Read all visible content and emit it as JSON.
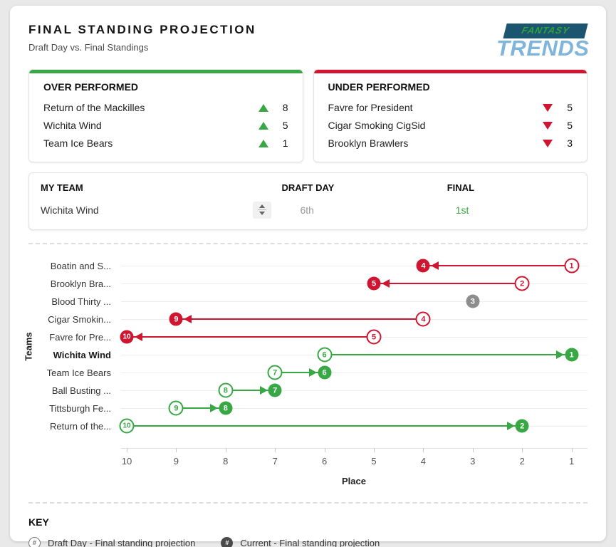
{
  "page": {
    "title": "FINAL STANDING PROJECTION",
    "subtitle": "Draft Day vs. Final Standings"
  },
  "logo": {
    "top": "FANTASY",
    "bottom": "TRENDS",
    "banner_color": "#1c5570",
    "top_color": "#2ca53c",
    "bottom_color": "#7fb5da"
  },
  "over_performed": {
    "title": "OVER PERFORMED",
    "accent_color": "#38a844",
    "rows": [
      {
        "team": "Return of the Mackilles",
        "delta": "8"
      },
      {
        "team": "Wichita Wind",
        "delta": "5"
      },
      {
        "team": "Team Ice Bears",
        "delta": "1"
      }
    ]
  },
  "under_performed": {
    "title": "UNDER PERFORMED",
    "accent_color": "#d01530",
    "rows": [
      {
        "team": "Favre for President",
        "delta": "5"
      },
      {
        "team": "Cigar Smoking CigSid",
        "delta": "5"
      },
      {
        "team": "Brooklyn Brawlers",
        "delta": "3"
      }
    ]
  },
  "my_team": {
    "headers": {
      "team": "MY TEAM",
      "draft": "DRAFT DAY",
      "final": "FINAL"
    },
    "team": "Wichita Wind",
    "draft_day": "6th",
    "final": "1st",
    "final_color": "#38a844"
  },
  "chart_data": {
    "type": "dumbbell",
    "title": "Final standing projection: draft day vs current, per team",
    "xlabel": "Place",
    "ylabel": "Teams",
    "x_ticks": [
      10,
      9,
      8,
      7,
      6,
      5,
      4,
      3,
      2,
      1
    ],
    "x_reversed": true,
    "rows": [
      {
        "team": "Boatin and S...",
        "draft": 1,
        "current": 4,
        "color": "red",
        "bold": false
      },
      {
        "team": "Brooklyn Bra...",
        "draft": 2,
        "current": 5,
        "color": "red",
        "bold": false
      },
      {
        "team": "Blood Thirty ...",
        "draft": 3,
        "current": 3,
        "color": "gray",
        "bold": false
      },
      {
        "team": "Cigar Smokin...",
        "draft": 4,
        "current": 9,
        "color": "red",
        "bold": false
      },
      {
        "team": "Favre for Pre...",
        "draft": 5,
        "current": 10,
        "color": "red",
        "bold": false
      },
      {
        "team": "Wichita Wind",
        "draft": 6,
        "current": 1,
        "color": "green",
        "bold": true
      },
      {
        "team": "Team Ice Bears",
        "draft": 7,
        "current": 6,
        "color": "green",
        "bold": false
      },
      {
        "team": "Ball Busting ...",
        "draft": 8,
        "current": 7,
        "color": "green",
        "bold": false
      },
      {
        "team": "Tittsburgh Fe...",
        "draft": 9,
        "current": 8,
        "color": "green",
        "bold": false
      },
      {
        "team": "Return of the...",
        "draft": 10,
        "current": 2,
        "color": "green",
        "bold": false
      }
    ]
  },
  "key": {
    "title": "KEY",
    "items": [
      {
        "marker": "open",
        "symbol": "#",
        "label": "Draft Day - Final standing projection"
      },
      {
        "marker": "filled",
        "symbol": "#",
        "label": "Current - Final standing projection"
      }
    ]
  },
  "colors": {
    "red": "#d01530",
    "green": "#38a844",
    "gray": "#8d8d8d"
  }
}
